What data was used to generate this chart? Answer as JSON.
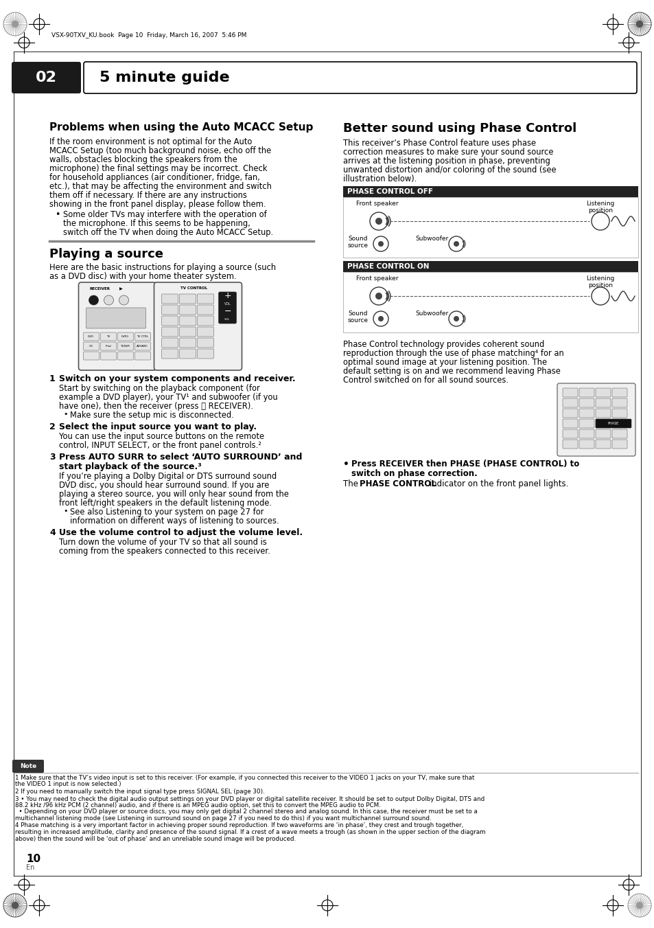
{
  "page_bg": "#ffffff",
  "header_bar_color": "#1a1a1a",
  "header_text": "5 minute guide",
  "header_num": "02",
  "top_note": "VSX-90TXV_KU.book  Page 10  Friday, March 16, 2007  5:46 PM",
  "section1_title": "Problems when using the Auto MCACC Setup",
  "section1_body": "If the room environment is not optimal for the Auto\nMCACC Setup (too much background noise, echo off the\nwalls, obstacles blocking the speakers from the\nmicrophone) the final settings may be incorrect. Check\nfor household appliances (air conditioner, fridge, fan,\netc.), that may be affecting the environment and switch\nthem off if necessary. If there are any instructions\nshowing in the front panel display, please follow them.",
  "section1_bullet": "Some older TVs may interfere with the operation of\nthe microphone. If this seems to be happening,\nswitch off the TV when doing the Auto MCACC Setup.",
  "section2_title": "Playing a source",
  "section2_body": "Here are the basic instructions for playing a source (such\nas a DVD disc) with your home theater system.",
  "step1_bold": "Switch on your system components and receiver.",
  "step1_body": "Start by switching on the playback component (for\nexample a DVD player), your TV¹ and subwoofer (if you\nhave one), then the receiver (press ⎉ RECEIVER).",
  "step1_bullet": "Make sure the setup mic is disconnected.",
  "step2_bold": "Select the input source you want to play.",
  "step2_body": "You can use the input source buttons on the remote\ncontrol, INPUT SELECT, or the front panel controls.²",
  "step3_bold": "Press AUTO SURR to select ‘AUTO SURROUND’ and\nstart playback of the source.³",
  "step3_body": "If you’re playing a Dolby Digital or DTS surround sound\nDVD disc, you should hear surround sound. If you are\nplaying a stereo source, you will only hear sound from the\nfront left/right speakers in the default listening mode.",
  "step3_bullet": "See also Listening to your system on page 27 for\ninformation on different ways of listening to sources.",
  "step4_bold": "Use the volume control to adjust the volume level.",
  "step4_body": "Turn down the volume of your TV so that all sound is\ncoming from the speakers connected to this receiver.",
  "right_title": "Better sound using Phase Control",
  "right_body1": "This receiver’s Phase Control feature uses phase\ncorrection measures to make sure your sound source\narrives at the listening position in phase, preventing\nunwanted distortion and/or coloring of the sound (see\nillustration below).",
  "phase_off_label": "PHASE CONTROL OFF",
  "phase_on_label": "PHASE CONTROL ON",
  "phase_body2": "Phase Control technology provides coherent sound\nreproduction through the use of phase matching⁴ for an\noptimal sound image at your listening position. The\ndefault setting is on and we recommend leaving Phase\nControl switched on for all sound sources.",
  "note_label": "Note",
  "footnotes": [
    "1 Make sure that the TV’s video input is set to this receiver. (For example, if you connected this receiver to the VIDEO 1 jacks on your TV, make sure that\nthe VIDEO 1 input is now selected.)",
    "2 If you need to manually switch the input signal type press SIGNAL SEL (page 30).",
    "3 • You may need to check the digital audio output settings on your DVD player or digital satellite receiver. It should be set to output Dolby Digital, DTS and\n88.2 kHz /96 kHz PCM (2 channel) audio, and if there is an MPEG audio option, set this to convert the MPEG audio to PCM.\n  • Depending on your DVD player or source discs, you may only get digital 2 channel stereo and analog sound. In this case, the receiver must be set to a\nmultichannel listening mode (see Listening in surround sound on page 27 if you need to do this) if you want multichannel surround sound.",
    "4 Phase matching is a very important factor in achieving proper sound reproduction. If two waveforms are ‘in phase’, they crest and trough together,\nresulting in increased amplitude, clarity and presence of the sound signal. If a crest of a wave meets a trough (as shown in the upper section of the diagram\nabove) then the sound will be ‘out of phase’ and an unreliable sound image will be produced."
  ],
  "page_num": "10",
  "page_lang": "En"
}
